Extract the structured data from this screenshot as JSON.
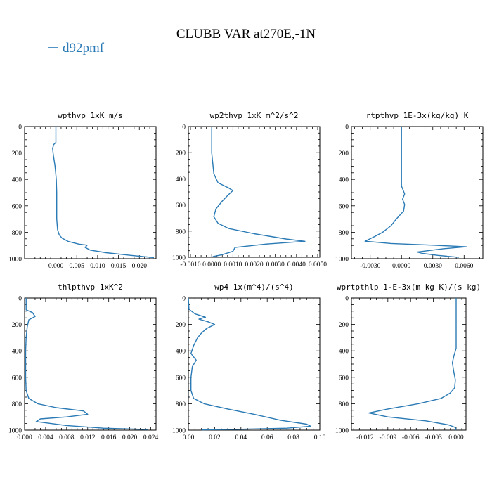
{
  "figure_title": "CLUBB VAR at270E,-1N",
  "legend": {
    "label": "d92pmf",
    "color": "#2a7ab5"
  },
  "line_color": "#2a7ab5",
  "chart_data": [
    {
      "type": "line",
      "title": "wpthvp  1xK m/s",
      "xticks": [
        "0.000",
        "0.005",
        "0.010",
        "0.015",
        "0.020"
      ],
      "xtick_values": [
        0,
        0.005,
        0.01,
        0.015,
        0.02
      ],
      "xlim": [
        -0.0075,
        0.024
      ],
      "yticks": [
        "0",
        "200",
        "400",
        "600",
        "800",
        "1000"
      ],
      "ylim": [
        1000,
        0
      ],
      "series": [
        {
          "name": "d92pmf",
          "points": [
            [
              0,
              0
            ],
            [
              0,
              120
            ],
            [
              -0.0005,
              135
            ],
            [
              -0.0008,
              165
            ],
            [
              -0.0006,
              220
            ],
            [
              -0.0002,
              300
            ],
            [
              0.0001,
              400
            ],
            [
              0.0002,
              500
            ],
            [
              0.0002,
              600
            ],
            [
              0.0002,
              700
            ],
            [
              0.0004,
              780
            ],
            [
              0.0008,
              820
            ],
            [
              0.0015,
              845
            ],
            [
              0.003,
              870
            ],
            [
              0.0055,
              890
            ],
            [
              0.0075,
              898
            ],
            [
              0.007,
              915
            ],
            [
              0.0082,
              935
            ],
            [
              0.012,
              955
            ],
            [
              0.018,
              975
            ],
            [
              0.0235,
              992
            ]
          ]
        }
      ]
    },
    {
      "type": "line",
      "title": "wp2thvp  1xK m^2/s^2",
      "xticks": [
        "-0.0010",
        "0.0000",
        "0.0010",
        "0.0020",
        "0.0030",
        "0.0040",
        "0.0050"
      ],
      "xtick_values": [
        -0.001,
        0,
        0.001,
        0.002,
        0.003,
        0.004,
        0.005
      ],
      "xlim": [
        -0.0011,
        0.0051
      ],
      "yticks": [
        "0",
        "200",
        "400",
        "600",
        "800",
        "1000"
      ],
      "ylim": [
        1000,
        0
      ],
      "series": [
        {
          "name": "d92pmf",
          "points": [
            [
              0,
              0
            ],
            [
              0,
              200
            ],
            [
              0.0001,
              360
            ],
            [
              0.0003,
              430
            ],
            [
              0.0008,
              470
            ],
            [
              0.001,
              490
            ],
            [
              0.0008,
              520
            ],
            [
              0.0005,
              570
            ],
            [
              0.0002,
              630
            ],
            [
              0.0001,
              690
            ],
            [
              0.0003,
              740
            ],
            [
              0.0008,
              780
            ],
            [
              0.002,
              820
            ],
            [
              0.0035,
              860
            ],
            [
              0.0044,
              878
            ],
            [
              0.0025,
              900
            ],
            [
              0.0011,
              925
            ],
            [
              0.001,
              955
            ],
            [
              0.0005,
              980
            ],
            [
              5e-05,
              995
            ]
          ]
        }
      ]
    },
    {
      "type": "line",
      "title": "rtpthvp  1E-3x(kg/kg) K",
      "xticks": [
        "-0.0030",
        "0.0000",
        "0.0030",
        "0.0060"
      ],
      "xtick_values": [
        -0.003,
        0,
        0.003,
        0.006
      ],
      "xlim": [
        -0.0048,
        0.0078
      ],
      "yticks": [
        "0",
        "200",
        "400",
        "600",
        "800",
        "1000"
      ],
      "ylim": [
        1000,
        0
      ],
      "series": [
        {
          "name": "d92pmf",
          "points": [
            [
              0,
              0
            ],
            [
              0,
              450
            ],
            [
              0.0003,
              510
            ],
            [
              0.0001,
              550
            ],
            [
              0.0003,
              590
            ],
            [
              0.0002,
              640
            ],
            [
              -0.0005,
              700
            ],
            [
              -0.001,
              750
            ],
            [
              -0.0018,
              800
            ],
            [
              -0.0025,
              830
            ],
            [
              -0.0035,
              868
            ],
            [
              -0.001,
              885
            ],
            [
              0.003,
              898
            ],
            [
              0.0062,
              910
            ],
            [
              0.004,
              925
            ],
            [
              0.0015,
              950
            ],
            [
              0.002,
              960
            ],
            [
              0.0035,
              975
            ],
            [
              0.0055,
              990
            ]
          ]
        }
      ]
    },
    {
      "type": "line",
      "title": "thlpthvp  1xK^2",
      "xticks": [
        "0.000",
        "0.004",
        "0.008",
        "0.012",
        "0.016",
        "0.020",
        "0.024"
      ],
      "xtick_values": [
        0,
        0.004,
        0.008,
        0.012,
        0.016,
        0.02,
        0.024
      ],
      "xlim": [
        0.0,
        0.025
      ],
      "yticks": [
        "0",
        "200",
        "400",
        "600",
        "800",
        "1000"
      ],
      "ylim": [
        1000,
        0
      ],
      "series": [
        {
          "name": "d92pmf",
          "points": [
            [
              0.0003,
              0
            ],
            [
              0.0003,
              90
            ],
            [
              0.0015,
              110
            ],
            [
              0.002,
              140
            ],
            [
              0.0008,
              165
            ],
            [
              0.0005,
              220
            ],
            [
              0.0003,
              300
            ],
            [
              0.0002,
              400
            ],
            [
              0.0002,
              500
            ],
            [
              0.0002,
              600
            ],
            [
              0.0003,
              700
            ],
            [
              0.0008,
              760
            ],
            [
              0.0025,
              800
            ],
            [
              0.006,
              830
            ],
            [
              0.0112,
              855
            ],
            [
              0.012,
              880
            ],
            [
              0.008,
              900
            ],
            [
              0.003,
              915
            ],
            [
              0.0022,
              935
            ],
            [
              0.008,
              965
            ],
            [
              0.015,
              985
            ],
            [
              0.0235,
              995
            ]
          ]
        }
      ]
    },
    {
      "type": "line",
      "title": "wp4  1x(m^4)/(s^4)",
      "xticks": [
        "0.00",
        "0.02",
        "0.04",
        "0.06",
        "0.08",
        "0.10"
      ],
      "xtick_values": [
        0,
        0.02,
        0.04,
        0.06,
        0.08,
        0.1
      ],
      "xlim": [
        0.0,
        0.1
      ],
      "yticks": [
        "0",
        "200",
        "400",
        "600",
        "800",
        "1000"
      ],
      "ylim": [
        1000,
        0
      ],
      "series": [
        {
          "name": "d92pmf",
          "points": [
            [
              0,
              0
            ],
            [
              0.0005,
              85
            ],
            [
              0.005,
              120
            ],
            [
              0.013,
              145
            ],
            [
              0.008,
              160
            ],
            [
              0.015,
              180
            ],
            [
              0.02,
              200
            ],
            [
              0.014,
              230
            ],
            [
              0.01,
              265
            ],
            [
              0.007,
              300
            ],
            [
              0.004,
              360
            ],
            [
              0.002,
              420
            ],
            [
              0.006,
              470
            ],
            [
              0.003,
              520
            ],
            [
              0.002,
              600
            ],
            [
              0.002,
              700
            ],
            [
              0.004,
              760
            ],
            [
              0.012,
              800
            ],
            [
              0.03,
              840
            ],
            [
              0.05,
              880
            ],
            [
              0.07,
              925
            ],
            [
              0.09,
              955
            ],
            [
              0.093,
              970
            ],
            [
              0.075,
              985
            ],
            [
              0.04,
              993
            ],
            [
              0.01,
              998
            ]
          ]
        }
      ]
    },
    {
      "type": "line",
      "title": "wprtpthlp  1-E-3x(m kg K)/(s kg)",
      "xticks": [
        "-0.012",
        "-0.009",
        "-0.006",
        "-0.003",
        "0.000"
      ],
      "xtick_values": [
        -0.012,
        -0.009,
        -0.006,
        -0.003,
        0
      ],
      "xlim": [
        -0.0138,
        0.0013
      ],
      "yticks": [
        "0",
        "200",
        "400",
        "600",
        "800",
        "1000"
      ],
      "ylim": [
        1000,
        0
      ],
      "series": [
        {
          "name": "d92pmf",
          "points": [
            [
              0,
              0
            ],
            [
              0,
              380
            ],
            [
              -0.0003,
              440
            ],
            [
              -0.0005,
              490
            ],
            [
              -0.0003,
              560
            ],
            [
              -0.0001,
              620
            ],
            [
              -0.0002,
              680
            ],
            [
              -0.0008,
              720
            ],
            [
              -0.002,
              760
            ],
            [
              -0.005,
              800
            ],
            [
              -0.009,
              840
            ],
            [
              -0.0115,
              870
            ],
            [
              -0.009,
              900
            ],
            [
              -0.004,
              930
            ],
            [
              -0.001,
              960
            ],
            [
              -0.0001,
              980
            ],
            [
              0,
              1000
            ]
          ]
        }
      ]
    }
  ]
}
